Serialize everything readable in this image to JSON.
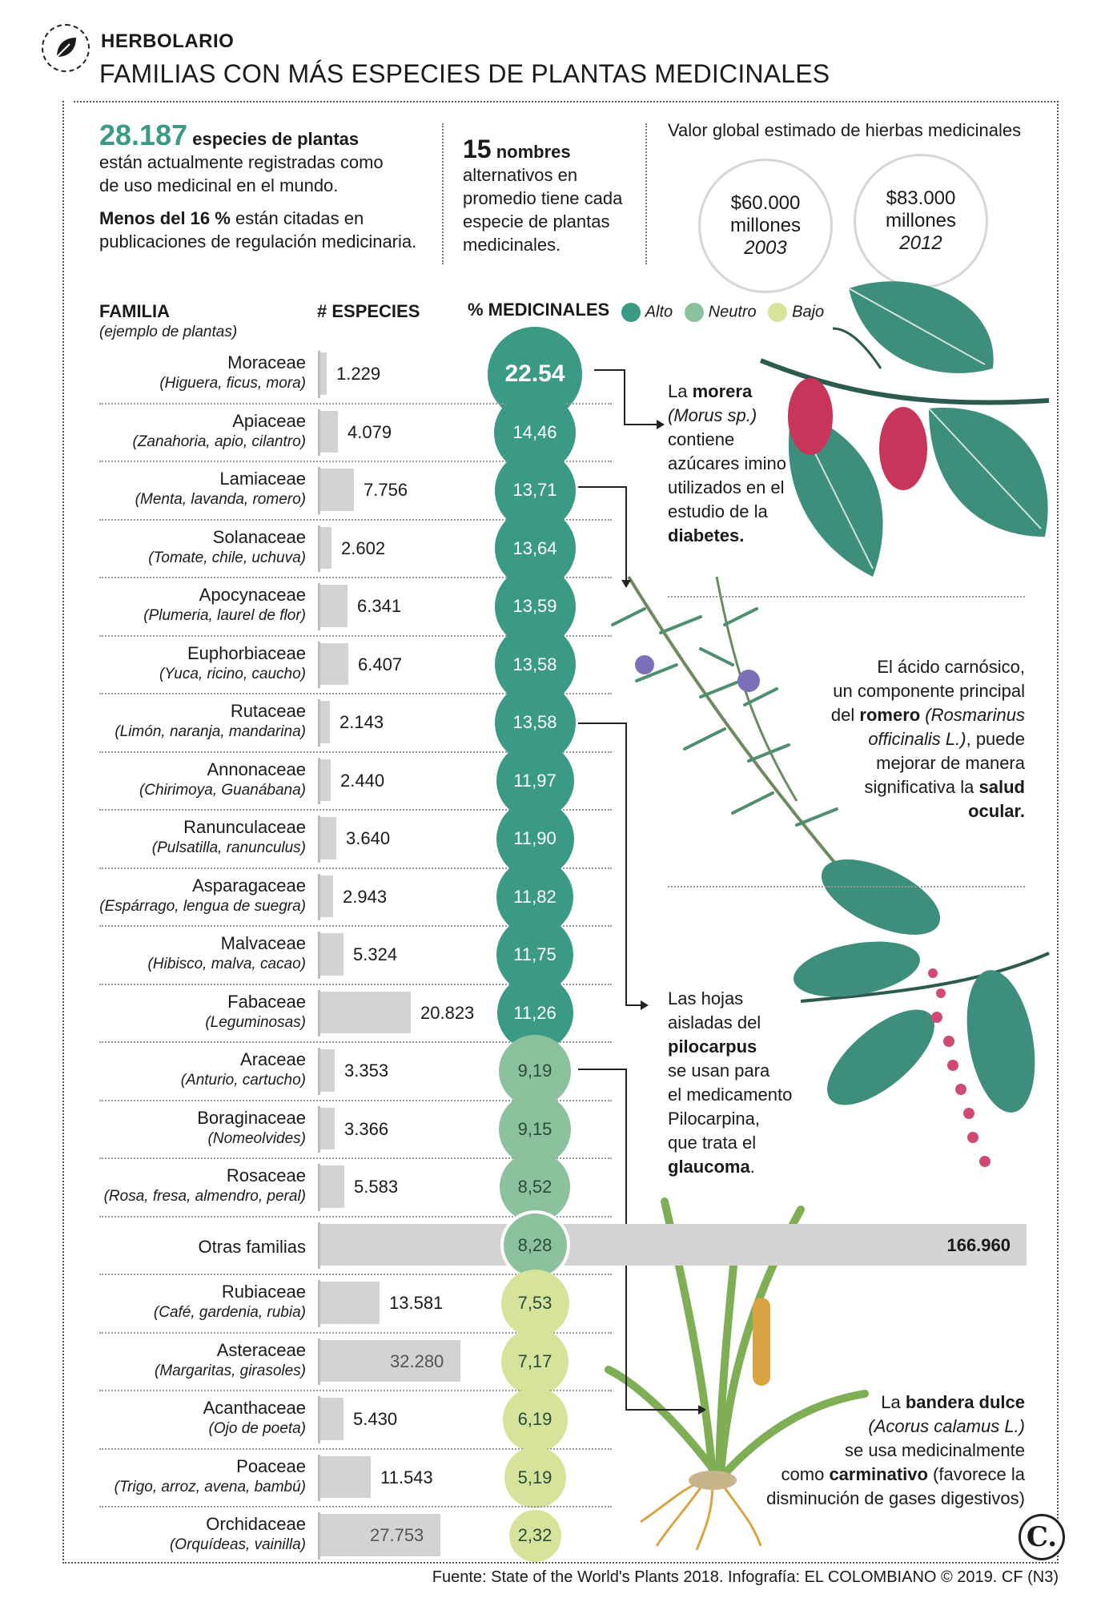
{
  "header": {
    "section": "HERBOLARIO",
    "title": "FAMILIAS CON MÁS ESPECIES DE PLANTAS MEDICINALES"
  },
  "intro": {
    "stat1_number": "28.187",
    "stat1_bold": "especies de plantas",
    "stat1_line2": "están actualmente registradas como",
    "stat1_line3": "de uso medicinal en el mundo.",
    "stat2_bold": "Menos del 16 %",
    "stat2_rest": " están citadas en",
    "stat2_line2": "publicaciones de regulación medicinaria.",
    "names_number": "15",
    "names_bold": "nombres",
    "names_line2": "alternativos en",
    "names_line3": "promedio tiene cada",
    "names_line4": "especie de plantas",
    "names_line5": "medicinales.",
    "value_title": "Valor global estimado de hierbas medicinales",
    "value_circles": [
      {
        "amount": "$60.000",
        "unit": "millones",
        "year": "2003"
      },
      {
        "amount": "$83.000",
        "unit": "millones",
        "year": "2012"
      }
    ]
  },
  "chart_data": {
    "type": "table",
    "columns": {
      "family": "FAMILIA",
      "family_sub": "(ejemplo de plantas)",
      "species": "# ESPECIES",
      "medicinal": "% MEDICINALES"
    },
    "legend": [
      {
        "label": "Alto",
        "color": "#3a9a84"
      },
      {
        "label": "Neutro",
        "color": "#8cc19d"
      },
      {
        "label": "Bajo",
        "color": "#d6e39a"
      }
    ],
    "rows": [
      {
        "family": "Moraceae",
        "examples": "(Higuera, ficus, mora)",
        "species": 1229,
        "species_label": "1.229",
        "pct": 22.54,
        "pct_label": "22.54",
        "level": "Alto"
      },
      {
        "family": "Apiaceae",
        "examples": "(Zanahoria, apio, cilantro)",
        "species": 4079,
        "species_label": "4.079",
        "pct": 14.46,
        "pct_label": "14,46",
        "level": "Alto"
      },
      {
        "family": "Lamiaceae",
        "examples": "(Menta, lavanda, romero)",
        "species": 7756,
        "species_label": "7.756",
        "pct": 13.71,
        "pct_label": "13,71",
        "level": "Alto"
      },
      {
        "family": "Solanaceae",
        "examples": "(Tomate, chile, uchuva)",
        "species": 2602,
        "species_label": "2.602",
        "pct": 13.64,
        "pct_label": "13,64",
        "level": "Alto"
      },
      {
        "family": "Apocynaceae",
        "examples": "(Plumeria, laurel de flor)",
        "species": 6341,
        "species_label": "6.341",
        "pct": 13.59,
        "pct_label": "13,59",
        "level": "Alto"
      },
      {
        "family": "Euphorbiaceae",
        "examples": "(Yuca, ricino, caucho)",
        "species": 6407,
        "species_label": "6.407",
        "pct": 13.58,
        "pct_label": "13,58",
        "level": "Alto"
      },
      {
        "family": "Rutaceae",
        "examples": "(Limón, naranja, mandarina)",
        "species": 2143,
        "species_label": "2.143",
        "pct": 13.58,
        "pct_label": "13,58",
        "level": "Alto"
      },
      {
        "family": "Annonaceae",
        "examples": "(Chirimoya, Guanábana)",
        "species": 2440,
        "species_label": "2.440",
        "pct": 11.97,
        "pct_label": "11,97",
        "level": "Alto"
      },
      {
        "family": "Ranunculaceae",
        "examples": "(Pulsatilla, ranunculus)",
        "species": 3640,
        "species_label": "3.640",
        "pct": 11.9,
        "pct_label": "11,90",
        "level": "Alto"
      },
      {
        "family": "Asparagaceae",
        "examples": "(Espárrago, lengua de suegra)",
        "species": 2943,
        "species_label": "2.943",
        "pct": 11.82,
        "pct_label": "11,82",
        "level": "Alto"
      },
      {
        "family": "Malvaceae",
        "examples": "(Hibisco, malva, cacao)",
        "species": 5324,
        "species_label": "5.324",
        "pct": 11.75,
        "pct_label": "11,75",
        "level": "Alto"
      },
      {
        "family": "Fabaceae",
        "examples": "(Leguminosas)",
        "species": 20823,
        "species_label": "20.823",
        "pct": 11.26,
        "pct_label": "11,26",
        "level": "Alto"
      },
      {
        "family": "Araceae",
        "examples": "(Anturio, cartucho)",
        "species": 3353,
        "species_label": "3.353",
        "pct": 9.19,
        "pct_label": "9,19",
        "level": "Neutro"
      },
      {
        "family": "Boraginaceae",
        "examples": "(Nomeolvides)",
        "species": 3366,
        "species_label": "3.366",
        "pct": 9.15,
        "pct_label": "9,15",
        "level": "Neutro"
      },
      {
        "family": "Rosaceae",
        "examples": "(Rosa, fresa, almendro, peral)",
        "species": 5583,
        "species_label": "5.583",
        "pct": 8.52,
        "pct_label": "8,52",
        "level": "Neutro"
      },
      {
        "family": "Otras familias",
        "examples": "",
        "species": 166960,
        "species_label": "166.960",
        "pct": 8.28,
        "pct_label": "8,28",
        "level": "Neutro"
      },
      {
        "family": "Rubiaceae",
        "examples": "(Café, gardenia, rubia)",
        "species": 13581,
        "species_label": "13.581",
        "pct": 7.53,
        "pct_label": "7,53",
        "level": "Bajo"
      },
      {
        "family": "Asteraceae",
        "examples": "(Margaritas, girasoles)",
        "species": 32280,
        "species_label": "32.280",
        "pct": 7.17,
        "pct_label": "7,17",
        "level": "Bajo"
      },
      {
        "family": "Acanthaceae",
        "examples": "(Ojo de poeta)",
        "species": 5430,
        "species_label": "5.430",
        "pct": 6.19,
        "pct_label": "6,19",
        "level": "Bajo"
      },
      {
        "family": "Poaceae",
        "examples": "(Trigo, arroz, avena, bambú)",
        "species": 11543,
        "species_label": "11.543",
        "pct": 5.19,
        "pct_label": "5,19",
        "level": "Bajo"
      },
      {
        "family": "Orchidaceae",
        "examples": "(Orquídeas, vainilla)",
        "species": 27753,
        "species_label": "27.753",
        "pct": 2.32,
        "pct_label": "2,32",
        "level": "Bajo"
      }
    ]
  },
  "notes": {
    "morera": {
      "p1": "La ",
      "b1": "morera",
      "l2": "(Morus sp.)",
      "l3": "contiene",
      "l4": "azúcares imino",
      "l5": "utilizados en el",
      "l6": "estudio de la",
      "b2": "diabetes."
    },
    "romero": {
      "l1": "El ácido carnósico,",
      "l2": "un componente principal",
      "l3a": "del ",
      "b1": "romero",
      "l3b": " (Rosmarinus",
      "l4a": "officinalis L.)",
      "l4b": ", puede",
      "l5": "mejorar de manera",
      "l6a": "significativa la ",
      "b2": "salud",
      "b3": "ocular."
    },
    "pilocarpus": {
      "l1": "Las hojas",
      "l2": "aisladas del",
      "b1": "pilocarpus",
      "l4": "se usan para",
      "l5": "el medicamento",
      "l6": "Pilocarpina,",
      "l7": "que trata el",
      "b2": "glaucoma",
      "l8end": "."
    },
    "bandera": {
      "l1a": "La ",
      "b1": "bandera dulce",
      "l2": "(Acorus calamus L.)",
      "l3": "se usa medicinalmente",
      "l4a": "como ",
      "b2": "carminativo",
      "l4b": " (favorece la",
      "l5": "disminución de gases digestivos)"
    }
  },
  "footer": {
    "source": "Fuente: State of the World's Plants 2018. Infografía: EL COLOMBIANO © 2019. CF (N3)",
    "logo": "C."
  },
  "colors": {
    "alto": "#3a9a84",
    "neutro": "#8cc19d",
    "bajo": "#d6e39a",
    "bar": "#d3d3d3",
    "leaf": "#3d8f7b",
    "berry": "#c8345a"
  }
}
